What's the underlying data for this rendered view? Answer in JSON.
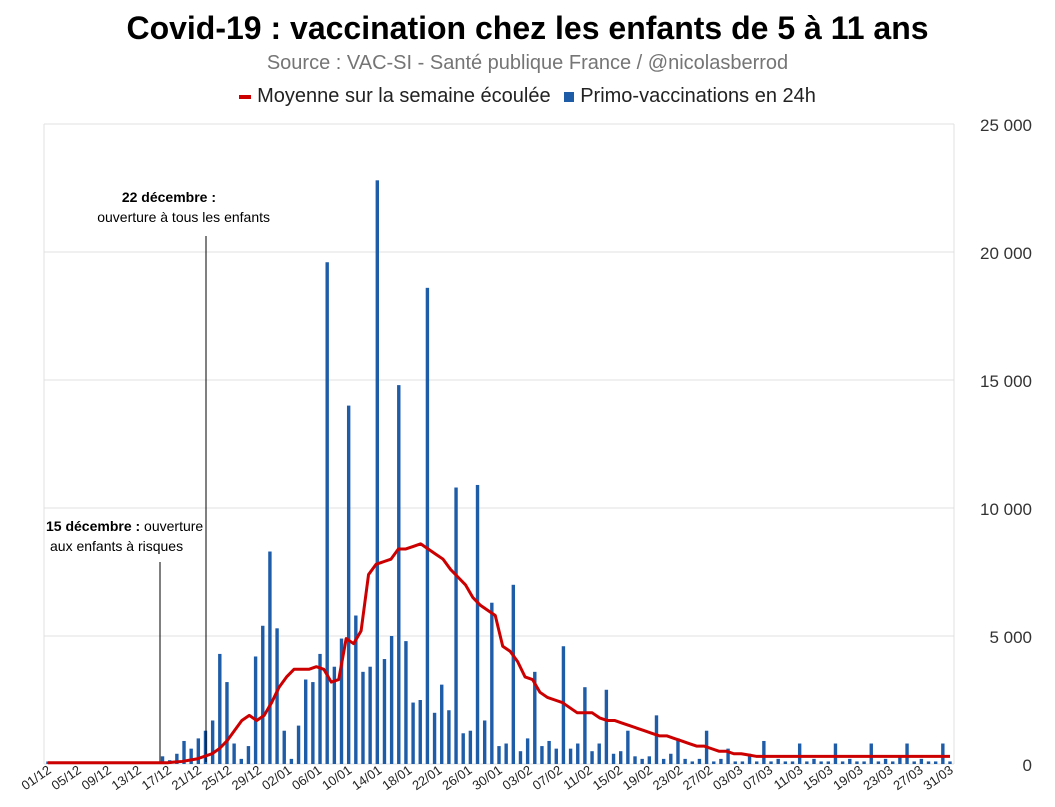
{
  "title": "Covid-19 : vaccination chez les enfants de 5 à 11 ans",
  "subtitle": "Source : VAC-SI - Santé publique France / @nicolasberrod",
  "legend": {
    "line": "Moyenne sur la semaine écoulée",
    "bars": "Primo-vaccinations en 24h"
  },
  "annotations": {
    "dec22_title": "22 décembre :",
    "dec22_text": "ouverture à tous les enfants",
    "dec15_title": "15 décembre :",
    "dec15_text1": " ouverture",
    "dec15_text2": "aux enfants à risques"
  },
  "colors": {
    "bars": "#1f5ca8",
    "line": "#cc0000",
    "grid": "#e0e0e0"
  },
  "chart_data": {
    "type": "bar",
    "title": "Covid-19 : vaccination chez les enfants de 5 à 11 ans",
    "ylim": [
      0,
      25000
    ],
    "y_ticks": [
      "0",
      "5 000",
      "10 000",
      "15 000",
      "20 000",
      "25 000"
    ],
    "y_axis_side": "right",
    "grid": true,
    "legend_position": "top",
    "x_tick_labels": [
      "01/12",
      "05/12",
      "09/12",
      "13/12",
      "17/12",
      "21/12",
      "25/12",
      "29/12",
      "02/01",
      "06/01",
      "10/01",
      "14/01",
      "18/01",
      "22/01",
      "26/01",
      "30/01",
      "03/02",
      "07/02",
      "11/02",
      "15/02",
      "19/02",
      "23/02",
      "27/02",
      "03/03",
      "07/03",
      "11/03",
      "15/03",
      "19/03",
      "23/03",
      "27/03",
      "31/03"
    ],
    "series": [
      {
        "name": "Primo-vaccinations en 24h",
        "type": "bar",
        "values": [
          100,
          30,
          30,
          30,
          30,
          30,
          30,
          30,
          30,
          30,
          30,
          30,
          30,
          30,
          30,
          30,
          300,
          150,
          400,
          900,
          600,
          1000,
          1300,
          1700,
          4300,
          3200,
          800,
          200,
          700,
          4200,
          5400,
          8300,
          5300,
          1300,
          200,
          1500,
          3300,
          3200,
          4300,
          19600,
          3800,
          4900,
          14000,
          5800,
          3600,
          3800,
          22800,
          4100,
          5000,
          14800,
          4800,
          2400,
          2500,
          18600,
          2000,
          3100,
          2100,
          10800,
          1200,
          1300,
          10900,
          1700,
          6300,
          700,
          800,
          7000,
          500,
          1000,
          3600,
          700,
          900,
          600,
          4600,
          600,
          800,
          3000,
          500,
          800,
          2900,
          400,
          500,
          1300,
          300,
          200,
          300,
          1900,
          200,
          400,
          1000,
          200,
          100,
          200,
          1300,
          100,
          200,
          600,
          100,
          100,
          400,
          100,
          900,
          100,
          200,
          100,
          100,
          800,
          100,
          200,
          100,
          100,
          800,
          100,
          200,
          100,
          100,
          800,
          100,
          200,
          100,
          300,
          800,
          100,
          200,
          100,
          100,
          800,
          100
        ],
        "x_range": [
          "01/12",
          "31/03"
        ]
      },
      {
        "name": "Moyenne sur la semaine écoulée",
        "type": "line",
        "values": [
          50,
          50,
          50,
          50,
          50,
          50,
          50,
          50,
          50,
          50,
          50,
          50,
          50,
          50,
          50,
          50,
          50,
          80,
          100,
          150,
          200,
          300,
          400,
          600,
          900,
          1300,
          1700,
          1900,
          1700,
          1900,
          2400,
          3000,
          3400,
          3700,
          3700,
          3700,
          3800,
          3700,
          3200,
          3300,
          4900,
          4700,
          5200,
          7400,
          7800,
          7900,
          8000,
          8400,
          8400,
          8500,
          8600,
          8400,
          8200,
          8000,
          7600,
          7300,
          7000,
          6500,
          6200,
          6000,
          5800,
          4600,
          4400,
          4000,
          3400,
          3300,
          2800,
          2600,
          2500,
          2400,
          2200,
          2000,
          2000,
          2000,
          1800,
          1700,
          1700,
          1600,
          1500,
          1400,
          1300,
          1200,
          1100,
          1100,
          1000,
          900,
          800,
          700,
          700,
          600,
          500,
          500,
          400,
          400,
          350,
          300,
          300,
          300,
          300,
          300,
          300,
          300,
          300,
          300,
          300,
          300,
          300,
          300,
          300,
          300,
          300,
          300,
          300,
          300,
          300,
          300,
          300,
          300,
          300,
          300,
          300,
          300
        ]
      }
    ]
  }
}
